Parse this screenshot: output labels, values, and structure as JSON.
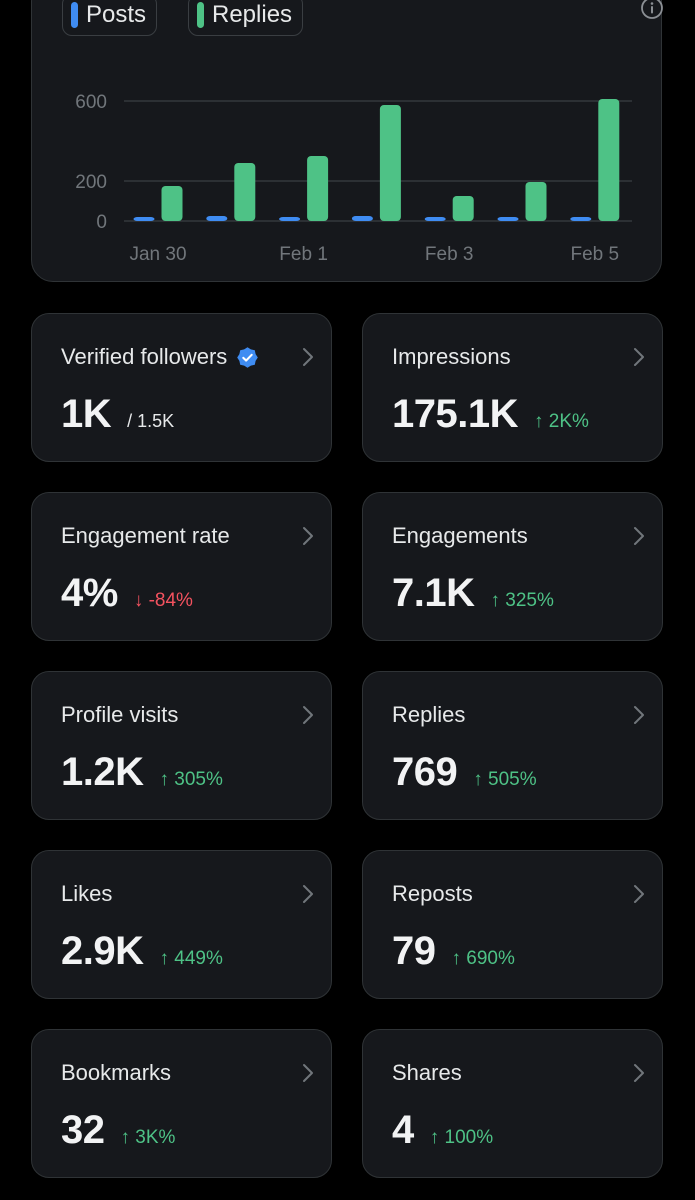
{
  "colors": {
    "posts": "#3f8cf2",
    "replies": "#4ec286",
    "up": "#4ec286",
    "down": "#f4525f",
    "verified": "#3f8cf2"
  },
  "chart_data": {
    "type": "bar",
    "legend": [
      "Posts",
      "Replies"
    ],
    "categories": [
      "Jan 30",
      "Jan 31",
      "Feb 1",
      "Feb 2",
      "Feb 3",
      "Feb 4",
      "Feb 5"
    ],
    "x_tick_labels": [
      "Jan 30",
      "Feb 1",
      "Feb 3",
      "Feb 5"
    ],
    "series": [
      {
        "name": "Posts",
        "values": [
          20,
          25,
          20,
          25,
          20,
          20,
          15
        ]
      },
      {
        "name": "Replies",
        "values": [
          175,
          290,
          325,
          580,
          125,
          195,
          610
        ]
      }
    ],
    "y_ticks": [
      0,
      200,
      600
    ],
    "ylim": [
      0,
      600
    ],
    "grid": true,
    "legend_position": "top-left"
  },
  "icons": {
    "info": "info-icon",
    "verified": "verified-badge-icon",
    "chevron": "chevron-right-icon"
  },
  "stats": [
    {
      "label": "Verified followers",
      "value": "1K",
      "sub": "/ 1.5K",
      "verified": true
    },
    {
      "label": "Impressions",
      "value": "175.1K",
      "change": "2K%",
      "direction": "up"
    },
    {
      "label": "Engagement rate",
      "value": "4%",
      "change": "-84%",
      "direction": "down"
    },
    {
      "label": "Engagements",
      "value": "7.1K",
      "change": "325%",
      "direction": "up"
    },
    {
      "label": "Profile visits",
      "value": "1.2K",
      "change": "305%",
      "direction": "up"
    },
    {
      "label": "Replies",
      "value": "769",
      "change": "505%",
      "direction": "up"
    },
    {
      "label": "Likes",
      "value": "2.9K",
      "change": "449%",
      "direction": "up"
    },
    {
      "label": "Reposts",
      "value": "79",
      "change": "690%",
      "direction": "up"
    },
    {
      "label": "Bookmarks",
      "value": "32",
      "change": "3K%",
      "direction": "up"
    },
    {
      "label": "Shares",
      "value": "4",
      "change": "100%",
      "direction": "up"
    }
  ]
}
